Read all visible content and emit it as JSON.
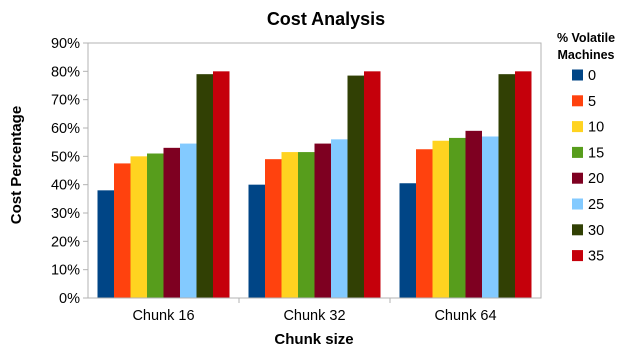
{
  "chart_data": {
    "type": "bar",
    "title": "Cost Analysis",
    "xlabel": "Chunk size",
    "ylabel": "Cost Percentage",
    "ylim": [
      0,
      90
    ],
    "yticks": [
      "0%",
      "10%",
      "20%",
      "30%",
      "40%",
      "50%",
      "60%",
      "70%",
      "80%",
      "90%"
    ],
    "categories": [
      "Chunk 16",
      "Chunk 32",
      "Chunk 64"
    ],
    "legend_title_lines": [
      "% Volatile",
      "Machines"
    ],
    "legend_position": "right",
    "grid": false,
    "series": [
      {
        "name": "0",
        "color": "#004586",
        "values": [
          38,
          40,
          40.5
        ]
      },
      {
        "name": "5",
        "color": "#ff420e",
        "values": [
          47.5,
          49,
          52.5
        ]
      },
      {
        "name": "10",
        "color": "#ffd320",
        "values": [
          50,
          51.5,
          55.5
        ]
      },
      {
        "name": "15",
        "color": "#579d1c",
        "values": [
          51,
          51.5,
          56.5
        ]
      },
      {
        "name": "20",
        "color": "#7e0021",
        "values": [
          53,
          54.5,
          59
        ]
      },
      {
        "name": "25",
        "color": "#83caff",
        "values": [
          54.5,
          56,
          57
        ]
      },
      {
        "name": "30",
        "color": "#314004",
        "values": [
          79,
          78.5,
          79
        ]
      },
      {
        "name": "35",
        "color": "#c5000b",
        "values": [
          80,
          80,
          80
        ]
      }
    ]
  }
}
